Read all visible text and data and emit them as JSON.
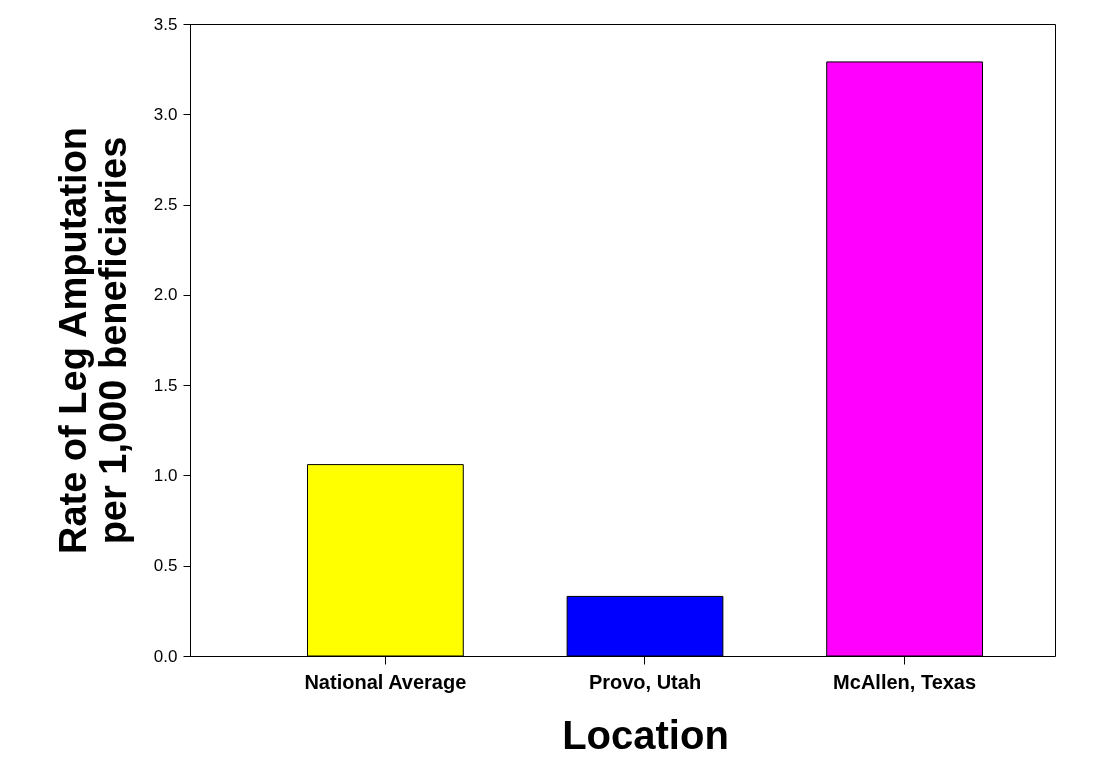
{
  "chart_data": {
    "type": "bar",
    "xlabel": "Location",
    "ylabel": "Rate of Leg Amputation\nper 1,000 beneficiaries",
    "categories": [
      "National Average",
      "Provo, Utah",
      "McAllen, Texas"
    ],
    "values": [
      1.06,
      0.33,
      3.29
    ],
    "colors": [
      "#ffff00",
      "#0000ff",
      "#ff00ff"
    ],
    "ylim": [
      0,
      3.5
    ],
    "yticks": [
      {
        "value": 0,
        "label": "0.0"
      },
      {
        "value": 0.5,
        "label": "0.5"
      },
      {
        "value": 1,
        "label": "1.0"
      },
      {
        "value": 1.5,
        "label": "1.5"
      },
      {
        "value": 2,
        "label": "2.0"
      },
      {
        "value": 2.5,
        "label": "2.5"
      },
      {
        "value": 3,
        "label": "3.0"
      },
      {
        "value": 3.5,
        "label": "3.5"
      }
    ],
    "grid": false
  }
}
